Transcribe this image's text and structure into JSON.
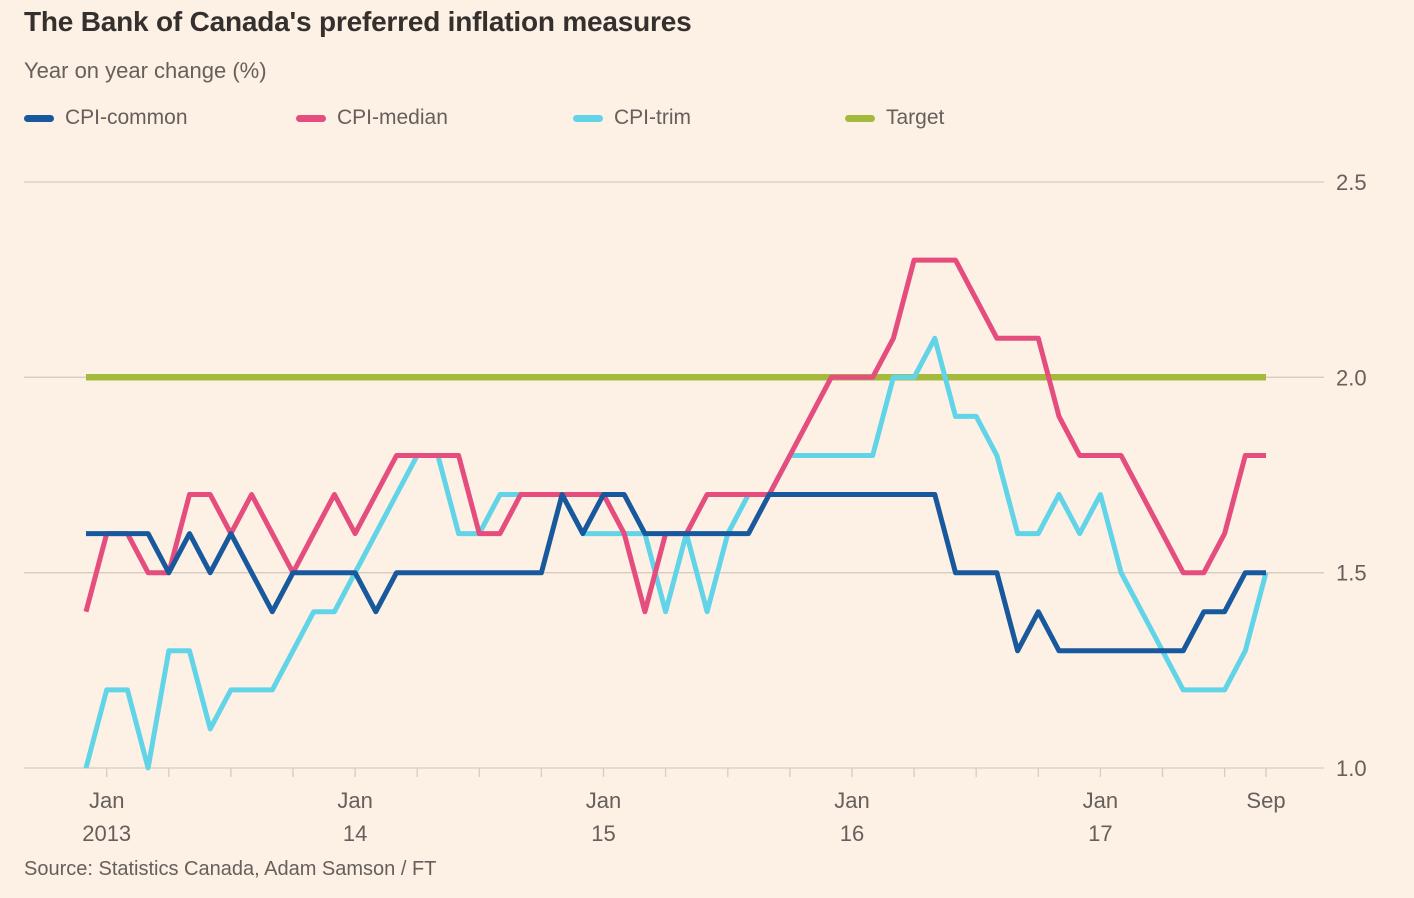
{
  "title": "The Bank of Canada's preferred inflation measures",
  "subtitle": "Year on year change (%)",
  "source": "Source: Statistics Canada, Adam Samson / FT",
  "colors": {
    "background": "#FDF0E4",
    "text_primary": "#33302E",
    "text_secondary": "#66605C",
    "grid": "#D6CCC2",
    "cpi_common": "#17599C",
    "cpi_median": "#E44D7E",
    "cpi_trim": "#62D4E8",
    "target": "#A3BA3C"
  },
  "legend": [
    {
      "label": "CPI-common",
      "color": "#17599C"
    },
    {
      "label": "CPI-median",
      "color": "#E44D7E"
    },
    {
      "label": "CPI-trim",
      "color": "#62D4E8"
    },
    {
      "label": "Target",
      "color": "#A3BA3C"
    }
  ],
  "chart_data": {
    "type": "line",
    "title": "The Bank of Canada's preferred inflation measures",
    "subtitle": "Year on year change (%)",
    "x_unit": "month",
    "x_start": "2012-12",
    "x_end": "2017-09",
    "ylim": [
      1.0,
      2.5
    ],
    "yticks": [
      1.0,
      1.5,
      2.0,
      2.5
    ],
    "grid": "horizontal",
    "legend_position": "top",
    "xticks": [
      {
        "month": "Jan",
        "year": "2013",
        "index": 1
      },
      {
        "month": "Jan",
        "year": "14",
        "index": 13
      },
      {
        "month": "Jan",
        "year": "15",
        "index": 25
      },
      {
        "month": "Jan",
        "year": "16",
        "index": 37
      },
      {
        "month": "Jan",
        "year": "17",
        "index": 49
      },
      {
        "month": "Sep",
        "year": "",
        "index": 57
      }
    ],
    "series": [
      {
        "name": "CPI-common",
        "color": "#17599C",
        "values": [
          1.6,
          1.6,
          1.6,
          1.6,
          1.5,
          1.6,
          1.5,
          1.6,
          1.5,
          1.4,
          1.5,
          1.5,
          1.5,
          1.5,
          1.4,
          1.5,
          1.5,
          1.5,
          1.5,
          1.5,
          1.5,
          1.5,
          1.5,
          1.7,
          1.6,
          1.7,
          1.7,
          1.6,
          1.6,
          1.6,
          1.6,
          1.6,
          1.6,
          1.7,
          1.7,
          1.7,
          1.7,
          1.7,
          1.7,
          1.7,
          1.7,
          1.7,
          1.5,
          1.5,
          1.5,
          1.3,
          1.4,
          1.3,
          1.3,
          1.3,
          1.3,
          1.3,
          1.3,
          1.3,
          1.4,
          1.4,
          1.5,
          1.5
        ]
      },
      {
        "name": "CPI-median",
        "color": "#E44D7E",
        "values": [
          1.4,
          1.6,
          1.6,
          1.5,
          1.5,
          1.7,
          1.7,
          1.6,
          1.7,
          1.6,
          1.5,
          1.6,
          1.7,
          1.6,
          1.7,
          1.8,
          1.8,
          1.8,
          1.8,
          1.6,
          1.6,
          1.7,
          1.7,
          1.7,
          1.7,
          1.7,
          1.6,
          1.4,
          1.6,
          1.6,
          1.7,
          1.7,
          1.7,
          1.7,
          1.8,
          1.9,
          2.0,
          2.0,
          2.0,
          2.1,
          2.3,
          2.3,
          2.3,
          2.2,
          2.1,
          2.1,
          2.1,
          1.9,
          1.8,
          1.8,
          1.8,
          1.7,
          1.6,
          1.5,
          1.5,
          1.6,
          1.8,
          1.8
        ]
      },
      {
        "name": "CPI-trim",
        "color": "#62D4E8",
        "values": [
          1.0,
          1.2,
          1.2,
          1.0,
          1.3,
          1.3,
          1.1,
          1.2,
          1.2,
          1.2,
          1.3,
          1.4,
          1.4,
          1.5,
          1.6,
          1.7,
          1.8,
          1.8,
          1.6,
          1.6,
          1.7,
          1.7,
          1.7,
          1.7,
          1.6,
          1.6,
          1.6,
          1.6,
          1.4,
          1.6,
          1.4,
          1.6,
          1.7,
          1.7,
          1.8,
          1.8,
          1.8,
          1.8,
          1.8,
          2.0,
          2.0,
          2.1,
          1.9,
          1.9,
          1.8,
          1.6,
          1.6,
          1.7,
          1.6,
          1.7,
          1.5,
          1.4,
          1.3,
          1.2,
          1.2,
          1.2,
          1.3,
          1.5
        ]
      },
      {
        "name": "Target",
        "color": "#A3BA3C",
        "constant": 2.0
      }
    ]
  }
}
